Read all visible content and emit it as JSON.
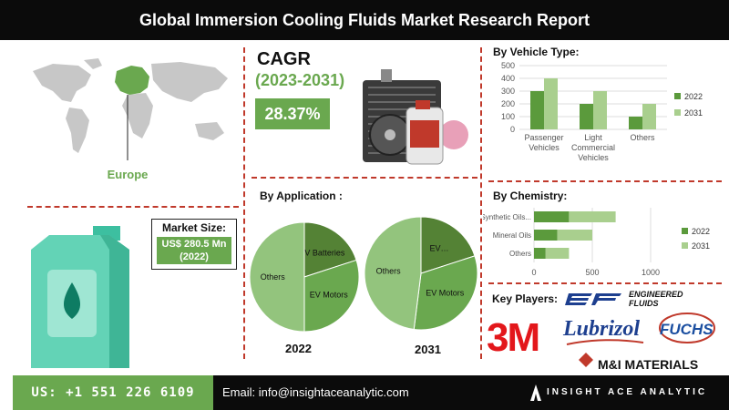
{
  "title": "Global Immersion Cooling Fluids Market Research Report",
  "map": {
    "region_label": "Europe",
    "highlight_color": "#6aa84f"
  },
  "cagr": {
    "title": "CAGR",
    "period": "(2023-2031)",
    "value": "28.37%"
  },
  "market_size": {
    "label": "Market Size:",
    "value_line1": "US$ 280.5 Mn",
    "value_line2": "(2022)"
  },
  "colors": {
    "dark_green": "#5b9a3c",
    "light_green": "#a9cf8e",
    "pie_dark": "#548235",
    "pie_mid": "#6aa84f",
    "pie_light": "#93c47d",
    "accent_red": "#c0392b"
  },
  "key_players": {
    "title": "Key Players:",
    "logos": [
      {
        "text": "3M"
      },
      {
        "text": "Lubrizol"
      },
      {
        "text": "FUCHS"
      },
      {
        "text": "M&I MATERIALS"
      },
      {
        "text": "ENGINEERED FLUIDS"
      }
    ]
  },
  "footer": {
    "phone": "US: +1 551 226 6109",
    "email": "Email: info@insightaceanalytic.com",
    "brand": "INSIGHT ACE ANALYTIC"
  },
  "chart_data": [
    {
      "type": "bar",
      "title": "By Vehicle Type:",
      "categories": [
        "Passenger Vehicles",
        "Light Commercial Vehicles",
        "Others"
      ],
      "series": [
        {
          "name": "2022",
          "values": [
            300,
            200,
            100
          ]
        },
        {
          "name": "2031",
          "values": [
            400,
            300,
            200
          ]
        }
      ],
      "ylim": [
        0,
        500
      ],
      "yticks": [
        0,
        100,
        200,
        300,
        400,
        500
      ],
      "legend": "right",
      "grid": true
    },
    {
      "type": "pie",
      "title": "By Application :",
      "caption": "2022",
      "slices": [
        {
          "label": "EV Batteries",
          "value": 20
        },
        {
          "label": "EV Motors",
          "value": 30
        },
        {
          "label": "Others",
          "value": 50
        }
      ]
    },
    {
      "type": "pie",
      "caption": "2031",
      "slices": [
        {
          "label": "EV…",
          "value": 20
        },
        {
          "label": "EV Motors",
          "value": 32
        },
        {
          "label": "Others",
          "value": 48
        }
      ]
    },
    {
      "type": "bar",
      "orientation": "horizontal",
      "stacked": true,
      "title": "By Chemistry:",
      "categories": [
        "Synthetic Oils...",
        "Mineral Oils",
        "Others"
      ],
      "series": [
        {
          "name": "2022",
          "values": [
            300,
            200,
            100
          ]
        },
        {
          "name": "2031",
          "values": [
            400,
            300,
            200
          ]
        }
      ],
      "xlim": [
        0,
        1000
      ],
      "xticks": [
        0,
        500,
        1000
      ],
      "legend": "right",
      "grid": true
    }
  ]
}
